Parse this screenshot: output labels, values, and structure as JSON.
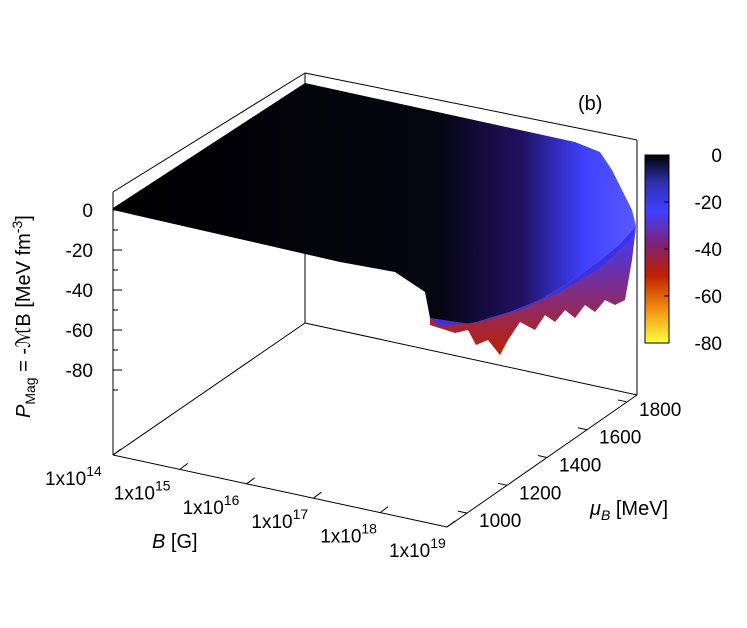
{
  "chart_data": {
    "type": "surface3d",
    "panel_label": "(b)",
    "zlabel": {
      "symbol": "P",
      "sub": "Mag",
      "rest": " = -ℳB [MeV fm",
      "sup": "-3",
      "close": "]"
    },
    "xlabel": {
      "symbol": "B",
      "rest": " [G]"
    },
    "ylabel": {
      "symbol": "μ",
      "sub": "B",
      "rest": " [MeV]"
    },
    "x_axis": {
      "scale": "log",
      "range": [
        100000000000000.0,
        1e+19
      ],
      "ticks": [
        {
          "base": "1x10",
          "exp": "14"
        },
        {
          "base": "1x10",
          "exp": "15"
        },
        {
          "base": "1x10",
          "exp": "16"
        },
        {
          "base": "1x10",
          "exp": "17"
        },
        {
          "base": "1x10",
          "exp": "18"
        },
        {
          "base": "1x10",
          "exp": "19"
        }
      ]
    },
    "y_axis": {
      "range": [
        900,
        1850
      ],
      "ticks": [
        "1000",
        "1200",
        "1400",
        "1600",
        "1800"
      ]
    },
    "z_axis": {
      "range": [
        -120,
        20
      ],
      "ticks": [
        "0",
        "-20",
        "-40",
        "-60",
        "-80"
      ]
    },
    "colorbar": {
      "range": [
        -80,
        0
      ],
      "ticks": [
        "0",
        "-20",
        "-40",
        "-60",
        "-80"
      ],
      "palette": [
        "#ffff40",
        "#f09010",
        "#c02000",
        "#802070",
        "#4040ff",
        "#5050e0",
        "#000000"
      ]
    },
    "surface_description_values": {
      "flat_region_value": 0,
      "oscillation_onset_log10B": 17.6,
      "min_value": -75
    }
  }
}
